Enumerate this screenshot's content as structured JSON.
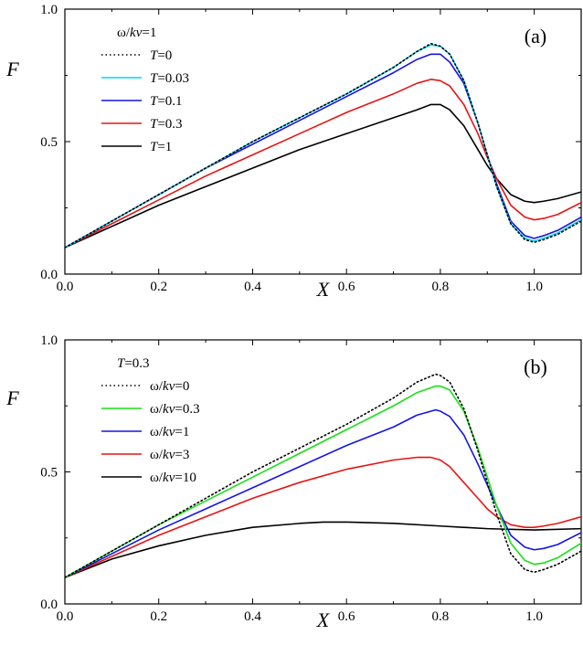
{
  "chart_data": [
    {
      "type": "line",
      "panel": "(a)",
      "xlabel": "X",
      "ylabel": "F",
      "xlim": [
        0.0,
        1.1
      ],
      "ylim": [
        0.0,
        1.0
      ],
      "xticks": [
        "0.0",
        "0.2",
        "0.4",
        "0.6",
        "0.8",
        "1.0"
      ],
      "yticks": [
        "0.0",
        "0.5",
        "1.0"
      ],
      "legend_title": "ω/kv=1",
      "legend_position": "top-left",
      "grid": false,
      "series": [
        {
          "name": "T=0",
          "label_var": "T",
          "label_val": "=0",
          "color": "#000000",
          "dash": "dotted",
          "x": [
            0,
            0.1,
            0.2,
            0.3,
            0.4,
            0.5,
            0.6,
            0.7,
            0.75,
            0.78,
            0.8,
            0.82,
            0.85,
            0.88,
            0.9,
            0.92,
            0.95,
            0.98,
            1.0,
            1.02,
            1.05,
            1.1
          ],
          "y": [
            0.1,
            0.2,
            0.3,
            0.4,
            0.5,
            0.59,
            0.68,
            0.78,
            0.84,
            0.87,
            0.86,
            0.83,
            0.73,
            0.57,
            0.45,
            0.33,
            0.19,
            0.13,
            0.12,
            0.13,
            0.15,
            0.2
          ]
        },
        {
          "name": "T=0.03",
          "label_var": "T",
          "label_val": "=0.03",
          "color": "#00d6f0",
          "dash": "solid",
          "x": [
            0,
            0.1,
            0.2,
            0.3,
            0.4,
            0.5,
            0.6,
            0.7,
            0.75,
            0.78,
            0.8,
            0.82,
            0.85,
            0.88,
            0.9,
            0.92,
            0.95,
            0.98,
            1.0,
            1.02,
            1.05,
            1.1
          ],
          "y": [
            0.1,
            0.2,
            0.3,
            0.4,
            0.5,
            0.59,
            0.68,
            0.78,
            0.84,
            0.865,
            0.86,
            0.83,
            0.73,
            0.57,
            0.45,
            0.33,
            0.19,
            0.135,
            0.125,
            0.135,
            0.155,
            0.205
          ]
        },
        {
          "name": "T=0.1",
          "label_var": "T",
          "label_val": "=0.1",
          "color": "#1414e6",
          "dash": "solid",
          "x": [
            0,
            0.1,
            0.2,
            0.3,
            0.4,
            0.5,
            0.6,
            0.7,
            0.75,
            0.78,
            0.8,
            0.82,
            0.85,
            0.88,
            0.9,
            0.92,
            0.95,
            0.98,
            1.0,
            1.02,
            1.05,
            1.1
          ],
          "y": [
            0.1,
            0.2,
            0.3,
            0.4,
            0.49,
            0.58,
            0.67,
            0.76,
            0.81,
            0.83,
            0.83,
            0.8,
            0.72,
            0.57,
            0.45,
            0.34,
            0.2,
            0.145,
            0.135,
            0.145,
            0.165,
            0.215
          ]
        },
        {
          "name": "T=0.3",
          "label_var": "T",
          "label_val": "=0.3",
          "color": "#e61414",
          "dash": "solid",
          "x": [
            0,
            0.1,
            0.2,
            0.3,
            0.4,
            0.5,
            0.6,
            0.7,
            0.75,
            0.78,
            0.8,
            0.82,
            0.85,
            0.88,
            0.9,
            0.92,
            0.95,
            0.98,
            1.0,
            1.02,
            1.05,
            1.1
          ],
          "y": [
            0.1,
            0.19,
            0.28,
            0.37,
            0.45,
            0.53,
            0.61,
            0.68,
            0.72,
            0.735,
            0.73,
            0.71,
            0.64,
            0.53,
            0.44,
            0.36,
            0.26,
            0.215,
            0.205,
            0.21,
            0.225,
            0.27
          ]
        },
        {
          "name": "T=1",
          "label_var": "T",
          "label_val": "=1",
          "color": "#000000",
          "dash": "solid",
          "x": [
            0,
            0.1,
            0.2,
            0.3,
            0.4,
            0.5,
            0.6,
            0.7,
            0.75,
            0.78,
            0.8,
            0.82,
            0.85,
            0.88,
            0.9,
            0.92,
            0.95,
            0.98,
            1.0,
            1.02,
            1.05,
            1.1
          ],
          "y": [
            0.1,
            0.18,
            0.26,
            0.33,
            0.4,
            0.47,
            0.53,
            0.59,
            0.62,
            0.64,
            0.64,
            0.62,
            0.56,
            0.47,
            0.41,
            0.36,
            0.3,
            0.275,
            0.27,
            0.275,
            0.285,
            0.31
          ]
        }
      ]
    },
    {
      "type": "line",
      "panel": "(b)",
      "xlabel": "X",
      "ylabel": "F",
      "xlim": [
        0.0,
        1.1
      ],
      "ylim": [
        0.0,
        1.0
      ],
      "xticks": [
        "0.0",
        "0.2",
        "0.4",
        "0.6",
        "0.8",
        "1.0"
      ],
      "yticks": [
        "0.0",
        "0.5",
        "1.0"
      ],
      "legend_title": "T=0.3",
      "legend_position": "top-left",
      "grid": false,
      "series": [
        {
          "name": "ω/kv=0",
          "label_var": "ω/kv",
          "label_val": "=0",
          "color": "#000000",
          "dash": "dotted",
          "x": [
            0,
            0.1,
            0.2,
            0.3,
            0.4,
            0.5,
            0.6,
            0.7,
            0.75,
            0.79,
            0.8,
            0.82,
            0.85,
            0.88,
            0.9,
            0.92,
            0.95,
            0.98,
            1.0,
            1.02,
            1.05,
            1.1
          ],
          "y": [
            0.1,
            0.2,
            0.3,
            0.4,
            0.5,
            0.59,
            0.68,
            0.78,
            0.84,
            0.87,
            0.865,
            0.84,
            0.74,
            0.58,
            0.46,
            0.34,
            0.19,
            0.13,
            0.12,
            0.13,
            0.15,
            0.2
          ]
        },
        {
          "name": "ω/kv=0.3",
          "label_var": "ω/kv",
          "label_val": "=0.3",
          "color": "#18e018",
          "dash": "solid",
          "x": [
            0,
            0.1,
            0.2,
            0.3,
            0.4,
            0.5,
            0.6,
            0.7,
            0.75,
            0.79,
            0.8,
            0.82,
            0.85,
            0.88,
            0.9,
            0.92,
            0.95,
            0.98,
            1.0,
            1.02,
            1.05,
            1.1
          ],
          "y": [
            0.1,
            0.2,
            0.3,
            0.39,
            0.48,
            0.57,
            0.66,
            0.75,
            0.8,
            0.825,
            0.825,
            0.81,
            0.73,
            0.59,
            0.48,
            0.37,
            0.23,
            0.165,
            0.15,
            0.155,
            0.175,
            0.23
          ]
        },
        {
          "name": "ω/kv=1",
          "label_var": "ω/kv",
          "label_val": "=1",
          "color": "#1414e6",
          "dash": "solid",
          "x": [
            0,
            0.1,
            0.2,
            0.3,
            0.4,
            0.5,
            0.6,
            0.7,
            0.75,
            0.79,
            0.8,
            0.82,
            0.85,
            0.88,
            0.9,
            0.92,
            0.95,
            0.98,
            1.0,
            1.02,
            1.05,
            1.1
          ],
          "y": [
            0.1,
            0.19,
            0.28,
            0.36,
            0.44,
            0.52,
            0.6,
            0.67,
            0.715,
            0.735,
            0.73,
            0.71,
            0.64,
            0.53,
            0.45,
            0.37,
            0.26,
            0.215,
            0.205,
            0.21,
            0.225,
            0.27
          ]
        },
        {
          "name": "ω/kv=3",
          "label_var": "ω/kv",
          "label_val": "=3",
          "color": "#e61414",
          "dash": "solid",
          "x": [
            0,
            0.1,
            0.2,
            0.3,
            0.4,
            0.5,
            0.6,
            0.7,
            0.75,
            0.78,
            0.8,
            0.82,
            0.85,
            0.88,
            0.9,
            0.92,
            0.95,
            0.98,
            1.0,
            1.02,
            1.05,
            1.1
          ],
          "y": [
            0.1,
            0.18,
            0.26,
            0.33,
            0.4,
            0.46,
            0.51,
            0.545,
            0.555,
            0.555,
            0.545,
            0.52,
            0.46,
            0.4,
            0.36,
            0.33,
            0.3,
            0.29,
            0.29,
            0.295,
            0.305,
            0.33
          ]
        },
        {
          "name": "ω/kv=10",
          "label_var": "ω/kv",
          "label_val": "=10",
          "color": "#000000",
          "dash": "solid",
          "x": [
            0,
            0.1,
            0.2,
            0.3,
            0.4,
            0.5,
            0.55,
            0.6,
            0.7,
            0.8,
            0.9,
            1.0,
            1.1
          ],
          "y": [
            0.1,
            0.17,
            0.22,
            0.26,
            0.29,
            0.305,
            0.31,
            0.31,
            0.305,
            0.295,
            0.285,
            0.28,
            0.285
          ]
        }
      ]
    }
  ]
}
